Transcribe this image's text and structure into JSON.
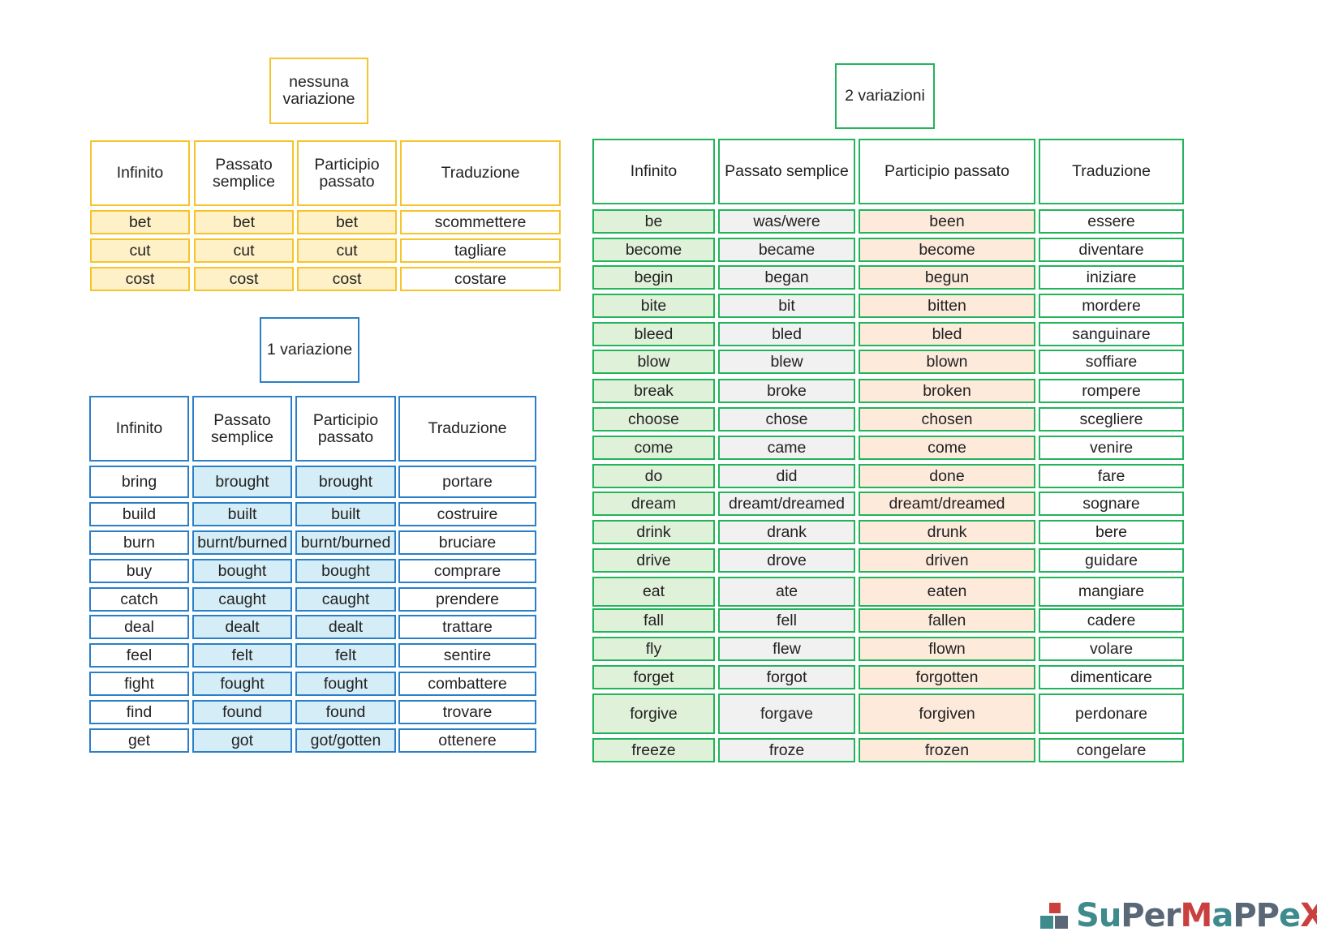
{
  "colors": {
    "yellow_border": "#f6c42a",
    "yellow_fill": "#fff1c7",
    "blue_border": "#2a7fc8",
    "blue_fill": "#d5edf7",
    "green_border": "#22b45a",
    "green_fill": "#e0f1da",
    "gray_fill": "#f1f1f1",
    "orange_fill": "#fdeadb"
  },
  "sections": [
    {
      "id": "no-variation",
      "title": "nessuna\nvariazione",
      "headers": [
        "Infinito",
        "Passato\nsemplice",
        "Participio\npassato",
        "Traduzione"
      ],
      "rows": [
        [
          "bet",
          "bet",
          "bet",
          "scommettere"
        ],
        [
          "cut",
          "cut",
          "cut",
          "tagliare"
        ],
        [
          "cost",
          "cost",
          "cost",
          "costare"
        ]
      ]
    },
    {
      "id": "one-variation",
      "title": "1 variazione",
      "headers": [
        "Infinito",
        "Passato\nsemplice",
        "Participio\npassato",
        "Traduzione"
      ],
      "rows": [
        [
          "bring",
          "brought",
          "brought",
          "portare"
        ],
        [
          "build",
          "built",
          "built",
          "costruire"
        ],
        [
          "burn",
          "burnt/burned",
          "burnt/burned",
          "bruciare"
        ],
        [
          "buy",
          "bought",
          "bought",
          "comprare"
        ],
        [
          "catch",
          "caught",
          "caught",
          "prendere"
        ],
        [
          "deal",
          "dealt",
          "dealt",
          "trattare"
        ],
        [
          "feel",
          "felt",
          "felt",
          "sentire"
        ],
        [
          "fight",
          "fought",
          "fought",
          "combattere"
        ],
        [
          "find",
          "found",
          "found",
          "trovare"
        ],
        [
          "get",
          "got",
          "got/gotten",
          "ottenere"
        ]
      ]
    },
    {
      "id": "two-variations",
      "title": "2 variazioni",
      "headers": [
        "Infinito",
        "Passato semplice",
        "Participio passato",
        "Traduzione"
      ],
      "rows": [
        [
          "be",
          "was/were",
          "been",
          "essere"
        ],
        [
          "become",
          "became",
          "become",
          "diventare"
        ],
        [
          "begin",
          "began",
          "begun",
          "iniziare"
        ],
        [
          "bite",
          "bit",
          "bitten",
          "mordere"
        ],
        [
          "bleed",
          "bled",
          "bled",
          "sanguinare"
        ],
        [
          "blow",
          "blew",
          "blown",
          "soffiare"
        ],
        [
          "break",
          "broke",
          "broken",
          "rompere"
        ],
        [
          "choose",
          "chose",
          "chosen",
          "scegliere"
        ],
        [
          "come",
          "came",
          "come",
          "venire"
        ],
        [
          "do",
          "did",
          "done",
          "fare"
        ],
        [
          "dream",
          "dreamt/dreamed",
          "dreamt/dreamed",
          "sognare"
        ],
        [
          "drink",
          "drank",
          "drunk",
          "bere"
        ],
        [
          "drive",
          "drove",
          "driven",
          "guidare"
        ],
        [
          "eat",
          "ate",
          "eaten",
          "mangiare"
        ],
        [
          "fall",
          "fell",
          "fallen",
          "cadere"
        ],
        [
          "fly",
          "flew",
          "flown",
          "volare"
        ],
        [
          "forget",
          "forgot",
          "forgotten",
          "dimenticare"
        ],
        [
          "forgive",
          "forgave",
          "forgiven",
          "perdonare"
        ],
        [
          "freeze",
          "froze",
          "frozen",
          "congelare"
        ]
      ]
    }
  ],
  "logo": {
    "text": "SuPerMaPPeX"
  }
}
